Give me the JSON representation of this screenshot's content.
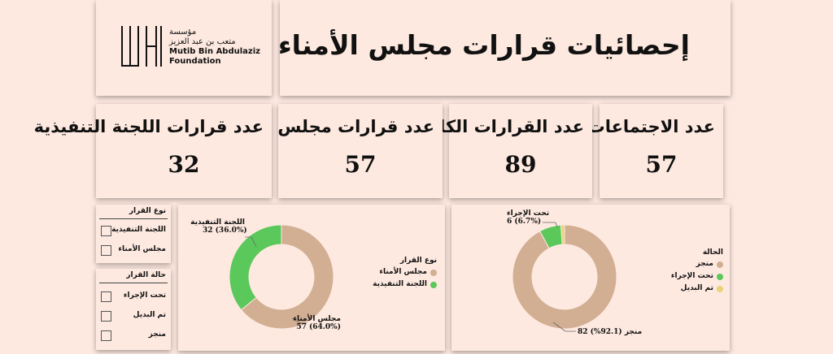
{
  "header": {
    "title": "إحصائيات قرارات مجلس الأمناء"
  },
  "logo": {
    "ar_line1": "مؤسسة",
    "ar_line2": "متعب بن عبد العزيز",
    "en_line1": "Mutib Bin Abdulaziz",
    "en_line2": "Foundation"
  },
  "kpis": [
    {
      "label": "عدد الاجتماعات",
      "value": "57"
    },
    {
      "label": "عدد القرارات الكلية",
      "value": "89"
    },
    {
      "label": "عدد قرارات مجلس الأمناء",
      "value": "57"
    },
    {
      "label": "عدد قرارات اللجنة التنفيذية",
      "value": "32"
    }
  ],
  "filters": {
    "type": {
      "title": "نوع القرار",
      "options": [
        "اللجنة التنفيذية",
        "مجلس الأمناء"
      ]
    },
    "status": {
      "title": "حالة القرار",
      "options": [
        "تحت الإجراء",
        "تم البديل",
        "منجز"
      ]
    }
  },
  "colors": {
    "tan": "#d2ae92",
    "green": "#5ac85a",
    "yellow": "#e8d27a"
  },
  "chart_data": [
    {
      "type": "pie",
      "legend_title": "نوع القرار",
      "legend_position": "right",
      "categories": [
        "مجلس الأمناء",
        "اللجنة التنفيذية"
      ],
      "values": [
        57,
        32
      ],
      "percent_labels": [
        "(64.0%)",
        "(36.0%)"
      ],
      "colors": [
        "#d2ae92",
        "#5ac85a"
      ]
    },
    {
      "type": "pie",
      "legend_title": "الحالة",
      "legend_position": "left",
      "categories": [
        "منجز",
        "تحت الإجراء",
        "تم البديل"
      ],
      "values": [
        82,
        6,
        1
      ],
      "percent_labels": [
        "(92.1%)",
        "(6.7%)",
        ""
      ],
      "colors": [
        "#d2ae92",
        "#5ac85a",
        "#e8d27a"
      ]
    }
  ]
}
